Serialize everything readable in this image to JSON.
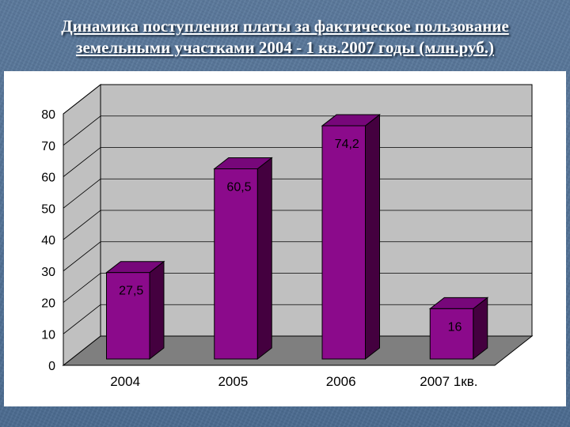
{
  "slide": {
    "title_line1": " Динамика поступления платы за фактическое пользование",
    "title_line2": "земельными участками 2004 - 1 кв.2007 годы (млн.руб.)"
  },
  "chart_data": {
    "type": "bar",
    "title": "",
    "xlabel": "",
    "ylabel": "",
    "categories": [
      "2004",
      "2005",
      "2006",
      "2007 1кв."
    ],
    "values": [
      27.5,
      60.5,
      74.2,
      16
    ],
    "value_labels": [
      "27,5",
      "60,5",
      "74,2",
      "16"
    ],
    "ylim": [
      0,
      80
    ],
    "yticks": [
      "0",
      "10",
      "20",
      "30",
      "40",
      "50",
      "60",
      "70",
      "80"
    ],
    "grid": true,
    "three_d": true,
    "legend": "none",
    "colors": {
      "bar_front": "#8b0a8b",
      "bar_top": "#77077a",
      "bar_side": "#44003f",
      "wall": "#c0c0c0",
      "floor": "#7f7f7f",
      "grid": "#000000"
    }
  }
}
